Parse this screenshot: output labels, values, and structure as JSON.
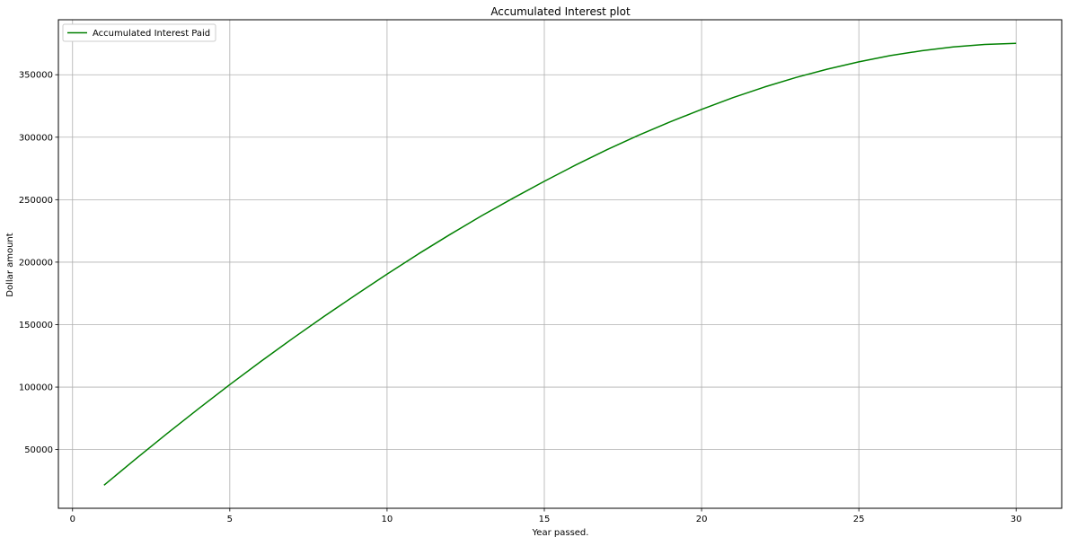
{
  "chart_data": {
    "type": "line",
    "title": "Accumulated Interest plot",
    "xlabel": "Year passed.",
    "ylabel": "Dollar amount",
    "xlim": [
      -0.45,
      31.45
    ],
    "ylim": [
      3000,
      394000
    ],
    "xticks": [
      0,
      5,
      10,
      15,
      20,
      25,
      30
    ],
    "xtick_labels": [
      "0",
      "5",
      "10",
      "15",
      "20",
      "25",
      "30"
    ],
    "yticks": [
      50000,
      100000,
      150000,
      200000,
      250000,
      300000,
      350000
    ],
    "ytick_labels": [
      "50000",
      "100000",
      "150000",
      "200000",
      "250000",
      "300000",
      "350000"
    ],
    "grid": true,
    "legend_position": "top-left",
    "series": [
      {
        "name": "Accumulated Interest Paid",
        "color": "#008000",
        "x": [
          1,
          2,
          3,
          4,
          5,
          6,
          7,
          8,
          9,
          10,
          11,
          12,
          13,
          14,
          15,
          16,
          17,
          18,
          19,
          20,
          21,
          22,
          23,
          24,
          25,
          26,
          27,
          28,
          29,
          30
        ],
        "y": [
          21500,
          42300,
          62700,
          82600,
          102000,
          120800,
          139000,
          156600,
          173700,
          190400,
          206600,
          222100,
          237000,
          251100,
          264700,
          277800,
          290100,
          301600,
          312300,
          322300,
          331700,
          340200,
          347800,
          354500,
          360300,
          365300,
          369200,
          372300,
          374200,
          375100
        ]
      }
    ]
  }
}
